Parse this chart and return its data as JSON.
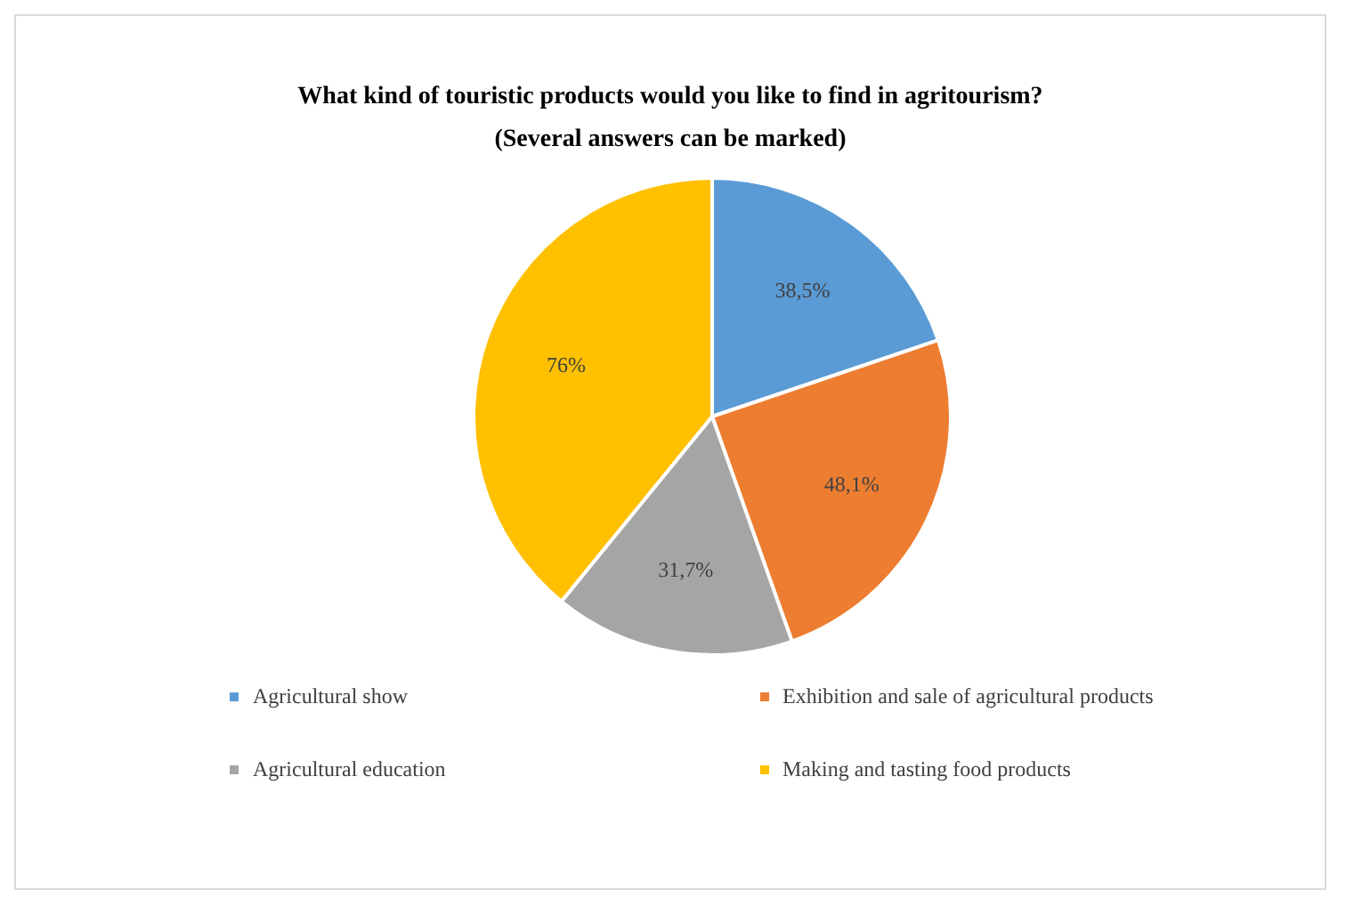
{
  "chart_data": {
    "type": "pie",
    "title": "What kind of touristic products would you like to find in agritourism?",
    "subtitle": "(Several answers can be marked)",
    "categories": [
      "Agricultural show",
      "Exhibition and sale of agricultural products",
      "Agricultural education",
      "Making and tasting food products"
    ],
    "values": [
      38.5,
      48.1,
      31.7,
      76
    ],
    "value_labels": [
      "38,5%",
      "48,1%",
      "31,7%",
      "76%"
    ],
    "colors": [
      "#5b9bd5",
      "#ed7d31",
      "#a5a5a5",
      "#ffc000"
    ],
    "legend": "bottom"
  }
}
